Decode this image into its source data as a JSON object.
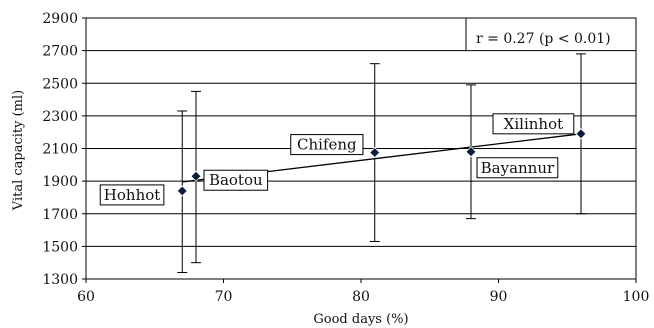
{
  "chart_data": {
    "type": "scatter",
    "xlabel": "Good days (%)",
    "ylabel": "Vital capacity (ml)",
    "xlim": [
      60,
      100
    ],
    "ylim": [
      1300,
      2900
    ],
    "x_ticks": [
      "60",
      "70",
      "80",
      "90",
      "100"
    ],
    "y_ticks": [
      "1300",
      "1500",
      "1700",
      "1900",
      "2100",
      "2300",
      "2500",
      "2700",
      "2900"
    ],
    "grid": "horizontal",
    "annotation": "r = 0.27 (p < 0.01)",
    "points": [
      {
        "label": "Hohhot",
        "x": 67,
        "y": 1840,
        "err_low": 1340,
        "err_high": 2330
      },
      {
        "label": "Baotou",
        "x": 68,
        "y": 1930,
        "err_low": 1400,
        "err_high": 2450
      },
      {
        "label": "Chifeng",
        "x": 81,
        "y": 2075,
        "err_low": 1530,
        "err_high": 2620
      },
      {
        "label": "Bayannur",
        "x": 88,
        "y": 2080,
        "err_low": 1670,
        "err_high": 2490
      },
      {
        "label": "Xilinhot",
        "x": 96,
        "y": 2190,
        "err_low": 1700,
        "err_high": 2680
      }
    ],
    "trendline": {
      "x": [
        67,
        96
      ],
      "y": [
        1895,
        2190
      ]
    },
    "marker_color": "#0d1b3e"
  }
}
